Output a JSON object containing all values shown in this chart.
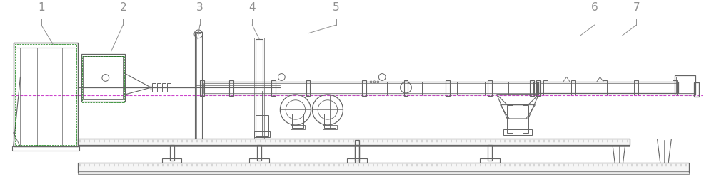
{
  "bg_color": "#ffffff",
  "lc": "#646464",
  "gc": "#007700",
  "mc": "#cc44cc",
  "lgc": "#909090",
  "fig_width": 10.0,
  "fig_height": 2.66,
  "dpi": 100
}
